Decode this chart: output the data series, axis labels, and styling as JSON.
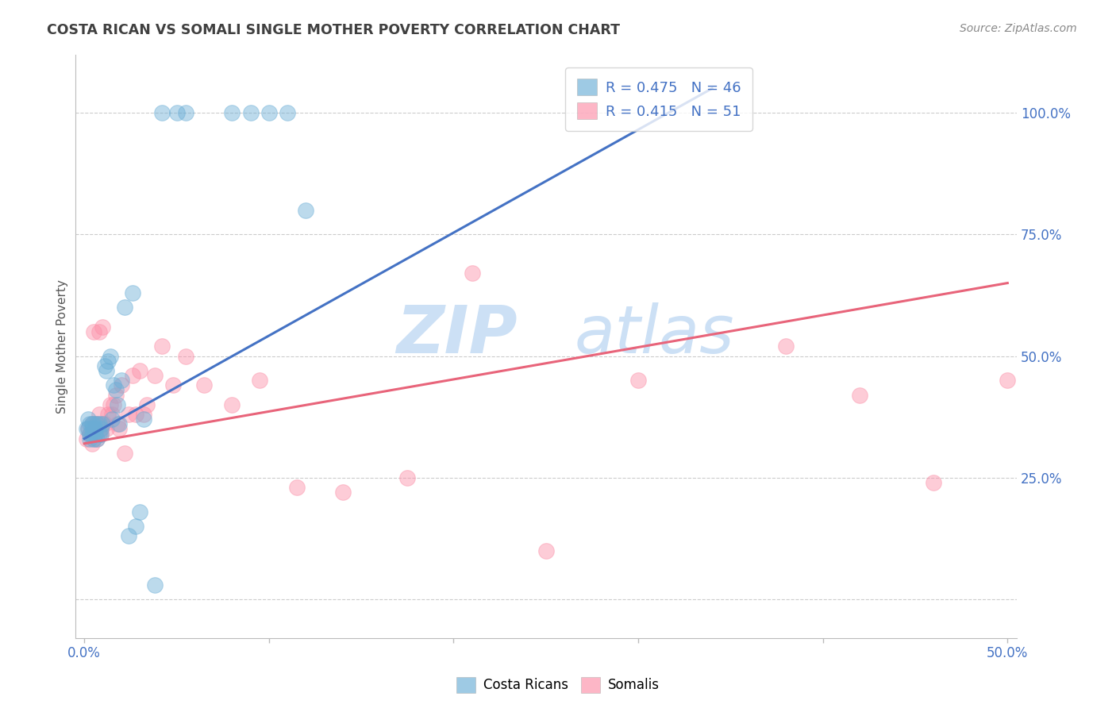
{
  "title": "COSTA RICAN VS SOMALI SINGLE MOTHER POVERTY CORRELATION CHART",
  "source": "Source: ZipAtlas.com",
  "ylabel": "Single Mother Poverty",
  "xlim": [
    -0.005,
    0.505
  ],
  "ylim": [
    -0.08,
    1.12
  ],
  "blue_R": 0.475,
  "blue_N": 46,
  "pink_R": 0.415,
  "pink_N": 51,
  "blue_color": "#6BAED6",
  "pink_color": "#FC8FA8",
  "background_color": "#ffffff",
  "grid_color": "#CCCCCC",
  "blue_line_color": "#4472C4",
  "pink_line_color": "#E8647A",
  "tick_color": "#4472C4",
  "title_color": "#404040",
  "source_color": "#888888",
  "blue_x": [
    0.001,
    0.002,
    0.002,
    0.003,
    0.003,
    0.003,
    0.004,
    0.004,
    0.004,
    0.005,
    0.005,
    0.005,
    0.006,
    0.006,
    0.007,
    0.007,
    0.008,
    0.008,
    0.009,
    0.009,
    0.01,
    0.011,
    0.012,
    0.013,
    0.014,
    0.015,
    0.016,
    0.017,
    0.018,
    0.019,
    0.02,
    0.022,
    0.024,
    0.026,
    0.028,
    0.03,
    0.032,
    0.038,
    0.042,
    0.05,
    0.055,
    0.08,
    0.09,
    0.1,
    0.11,
    0.12
  ],
  "blue_y": [
    0.35,
    0.35,
    0.37,
    0.34,
    0.36,
    0.33,
    0.35,
    0.36,
    0.34,
    0.33,
    0.35,
    0.36,
    0.34,
    0.35,
    0.33,
    0.36,
    0.34,
    0.36,
    0.35,
    0.34,
    0.36,
    0.48,
    0.47,
    0.49,
    0.5,
    0.37,
    0.44,
    0.43,
    0.4,
    0.36,
    0.45,
    0.6,
    0.13,
    0.63,
    0.15,
    0.18,
    0.37,
    0.03,
    1.0,
    1.0,
    1.0,
    1.0,
    1.0,
    1.0,
    1.0,
    0.8
  ],
  "pink_x": [
    0.001,
    0.002,
    0.003,
    0.004,
    0.004,
    0.005,
    0.005,
    0.006,
    0.006,
    0.007,
    0.007,
    0.008,
    0.008,
    0.009,
    0.009,
    0.01,
    0.01,
    0.011,
    0.012,
    0.013,
    0.014,
    0.015,
    0.016,
    0.017,
    0.018,
    0.019,
    0.02,
    0.022,
    0.024,
    0.026,
    0.028,
    0.03,
    0.032,
    0.034,
    0.038,
    0.042,
    0.048,
    0.055,
    0.065,
    0.08,
    0.095,
    0.115,
    0.14,
    0.175,
    0.21,
    0.25,
    0.3,
    0.38,
    0.42,
    0.46,
    0.5
  ],
  "pink_y": [
    0.33,
    0.35,
    0.34,
    0.32,
    0.36,
    0.33,
    0.55,
    0.34,
    0.36,
    0.33,
    0.36,
    0.38,
    0.55,
    0.35,
    0.34,
    0.36,
    0.56,
    0.36,
    0.35,
    0.38,
    0.4,
    0.38,
    0.4,
    0.42,
    0.36,
    0.35,
    0.44,
    0.3,
    0.38,
    0.46,
    0.38,
    0.47,
    0.38,
    0.4,
    0.46,
    0.52,
    0.44,
    0.5,
    0.44,
    0.4,
    0.45,
    0.23,
    0.22,
    0.25,
    0.67,
    0.1,
    0.45,
    0.52,
    0.42,
    0.24,
    0.45
  ],
  "blue_line_x0": 0.0,
  "blue_line_x1": 0.34,
  "blue_line_y0": 0.33,
  "blue_line_y1": 1.05,
  "pink_line_x0": 0.0,
  "pink_line_x1": 0.5,
  "pink_line_y0": 0.32,
  "pink_line_y1": 0.65,
  "yticks": [
    0.0,
    0.25,
    0.5,
    0.75,
    1.0
  ],
  "ytick_labels": [
    "",
    "25.0%",
    "50.0%",
    "75.0%",
    "100.0%"
  ],
  "xtick_positions": [
    0.0,
    0.1,
    0.2,
    0.3,
    0.4,
    0.5
  ],
  "xtick_labels_visible": [
    "0.0%",
    "",
    "",
    "",
    "",
    "50.0%"
  ]
}
